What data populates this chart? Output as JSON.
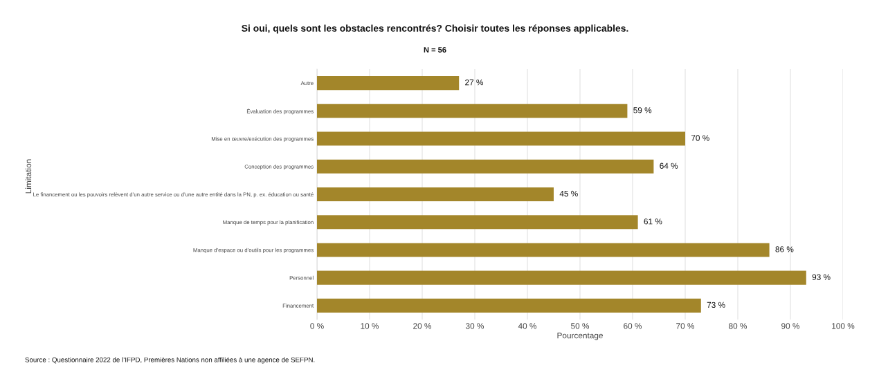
{
  "chart_data": {
    "type": "bar",
    "orientation": "horizontal",
    "title": "Si oui, quels sont les obstacles rencontrés? Choisir toutes les réponses applicables.",
    "subtitle": "N = 56",
    "xlabel": "Pourcentage",
    "ylabel": "Limitation",
    "categories": [
      "Autre",
      "Évaluation des programmes",
      "Mise en œuvre/exécution des programmes",
      "Conception des programmes",
      "Le financement ou les pouvoirs relèvent d’un autre service ou d’une autre entité dans la PN, p. ex. éducation ou santé",
      "Manque de temps pour la planification",
      "Manque d’espace ou d’outils pour les programmes",
      "Personnel",
      "Financement"
    ],
    "values": [
      27,
      59,
      70,
      64,
      45,
      61,
      86,
      93,
      73
    ],
    "value_labels": [
      "27 %",
      "59 %",
      "70 %",
      "64 %",
      "45 %",
      "61 %",
      "86 %",
      "93 %",
      "73 %"
    ],
    "color": "#a3862a",
    "xlim": [
      0,
      100
    ],
    "xticks": [
      {
        "value": 0,
        "label": "0 %"
      },
      {
        "value": 10,
        "label": "10 %"
      },
      {
        "value": 20,
        "label": "20 %"
      },
      {
        "value": 30,
        "label": "30 %"
      },
      {
        "value": 40,
        "label": "40 %"
      },
      {
        "value": 50,
        "label": "50 %"
      },
      {
        "value": 60,
        "label": "60 %"
      },
      {
        "value": 70,
        "label": "70 %"
      },
      {
        "value": 80,
        "label": "80 %"
      },
      {
        "value": 90,
        "label": "90 %"
      },
      {
        "value": 100,
        "label": "100 %"
      }
    ],
    "grid": "x",
    "annotations": [
      "Source : Questionnaire 2022 de l’IFPD, Premières Nations non affiliées à une agence de SEFPN."
    ]
  }
}
